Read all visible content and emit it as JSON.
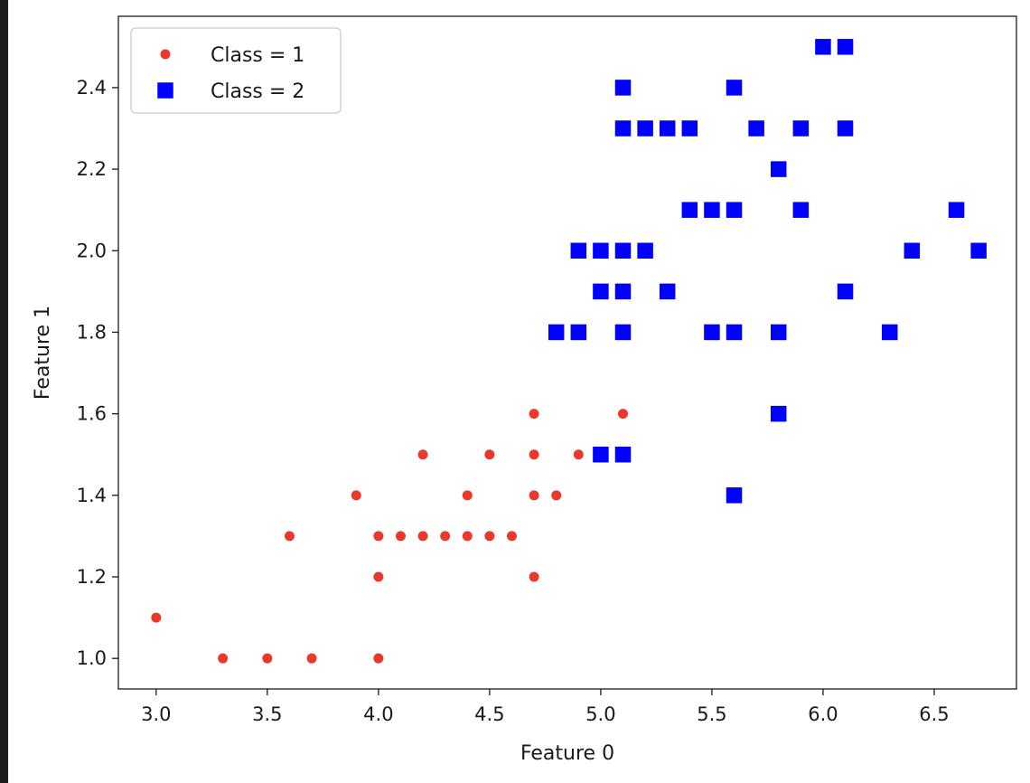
{
  "chart_data": {
    "type": "scatter",
    "title": "",
    "xlabel": "Feature 0",
    "ylabel": "Feature 1",
    "xlim": [
      2.83,
      6.87
    ],
    "ylim": [
      0.925,
      2.575
    ],
    "xticks": [
      3.0,
      3.5,
      4.0,
      4.5,
      5.0,
      5.5,
      6.0,
      6.5
    ],
    "xtick_labels": [
      "3.0",
      "3.5",
      "4.0",
      "4.5",
      "5.0",
      "5.5",
      "6.0",
      "6.5"
    ],
    "yticks": [
      1.0,
      1.2,
      1.4,
      1.6,
      1.8,
      2.0,
      2.2,
      2.4
    ],
    "ytick_labels": [
      "1.0",
      "1.2",
      "1.4",
      "1.6",
      "1.8",
      "2.0",
      "2.2",
      "2.4"
    ],
    "grid": false,
    "legend_position": "top-left",
    "series": [
      {
        "name": "Class = 1",
        "marker": "circle",
        "color": "#e8392c",
        "points": [
          [
            3.0,
            1.1
          ],
          [
            3.3,
            1.0
          ],
          [
            3.5,
            1.0
          ],
          [
            3.7,
            1.0
          ],
          [
            4.0,
            1.0
          ],
          [
            4.0,
            1.2
          ],
          [
            4.7,
            1.2
          ],
          [
            3.6,
            1.3
          ],
          [
            4.0,
            1.3
          ],
          [
            4.1,
            1.3
          ],
          [
            4.2,
            1.3
          ],
          [
            4.3,
            1.3
          ],
          [
            4.4,
            1.3
          ],
          [
            4.5,
            1.3
          ],
          [
            4.6,
            1.3
          ],
          [
            3.9,
            1.4
          ],
          [
            4.4,
            1.4
          ],
          [
            4.7,
            1.4
          ],
          [
            4.8,
            1.4
          ],
          [
            4.2,
            1.5
          ],
          [
            4.5,
            1.5
          ],
          [
            4.7,
            1.5
          ],
          [
            4.9,
            1.5
          ],
          [
            4.7,
            1.6
          ],
          [
            5.1,
            1.6
          ]
        ]
      },
      {
        "name": "Class = 2",
        "marker": "square",
        "color": "#0000ff",
        "points": [
          [
            5.0,
            1.5
          ],
          [
            5.1,
            1.5
          ],
          [
            5.6,
            1.4
          ],
          [
            5.8,
            1.6
          ],
          [
            4.8,
            1.8
          ],
          [
            4.9,
            1.8
          ],
          [
            5.1,
            1.8
          ],
          [
            5.5,
            1.8
          ],
          [
            5.6,
            1.8
          ],
          [
            5.8,
            1.8
          ],
          [
            6.3,
            1.8
          ],
          [
            5.0,
            1.9
          ],
          [
            5.1,
            1.9
          ],
          [
            5.3,
            1.9
          ],
          [
            6.1,
            1.9
          ],
          [
            4.9,
            2.0
          ],
          [
            5.0,
            2.0
          ],
          [
            5.1,
            2.0
          ],
          [
            5.2,
            2.0
          ],
          [
            6.4,
            2.0
          ],
          [
            6.7,
            2.0
          ],
          [
            5.4,
            2.1
          ],
          [
            5.5,
            2.1
          ],
          [
            5.6,
            2.1
          ],
          [
            5.9,
            2.1
          ],
          [
            6.6,
            2.1
          ],
          [
            5.8,
            2.2
          ],
          [
            5.1,
            2.3
          ],
          [
            5.2,
            2.3
          ],
          [
            5.3,
            2.3
          ],
          [
            5.4,
            2.3
          ],
          [
            5.7,
            2.3
          ],
          [
            5.9,
            2.3
          ],
          [
            6.1,
            2.3
          ],
          [
            5.1,
            2.4
          ],
          [
            5.6,
            2.4
          ],
          [
            6.0,
            2.5
          ],
          [
            6.1,
            2.5
          ]
        ]
      }
    ]
  }
}
